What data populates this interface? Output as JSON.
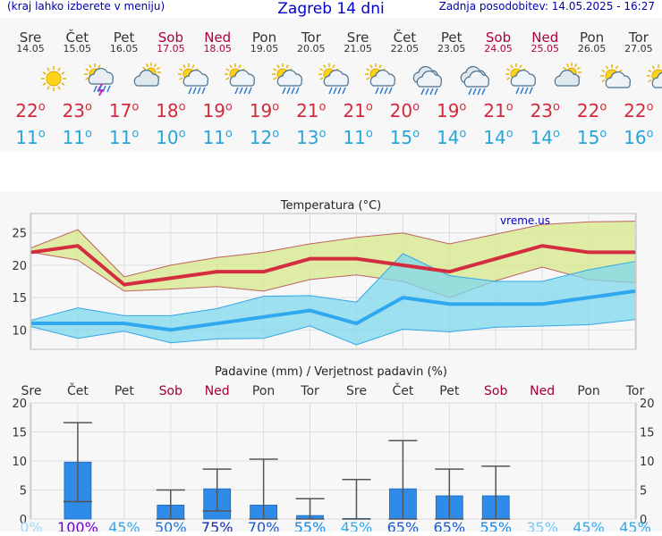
{
  "header": {
    "menu_hint": "(kraj lahko izberete v meniju)",
    "title": "Zagreb 14 dni",
    "last_update": "Zadnja posodobitev: 14.05.2025 - 16:27"
  },
  "days": [
    {
      "name": "Sre",
      "date": "14.05",
      "icon": "sun-icon",
      "max": "22",
      "min": "11",
      "weekend": false
    },
    {
      "name": "Čet",
      "date": "15.05",
      "icon": "thunderstorm-icon",
      "max": "23",
      "min": "11",
      "weekend": false
    },
    {
      "name": "Pet",
      "date": "16.05",
      "icon": "partly-cloudy-icon",
      "max": "17",
      "min": "11",
      "weekend": false
    },
    {
      "name": "Sob",
      "date": "17.05",
      "icon": "sun-rain-icon",
      "max": "18",
      "min": "10",
      "weekend": true
    },
    {
      "name": "Ned",
      "date": "18.05",
      "icon": "sun-rain-icon",
      "max": "19",
      "min": "11",
      "weekend": true
    },
    {
      "name": "Pon",
      "date": "19.05",
      "icon": "sun-rain-icon",
      "max": "19",
      "min": "12",
      "weekend": false
    },
    {
      "name": "Tor",
      "date": "20.05",
      "icon": "sun-rain-icon",
      "max": "21",
      "min": "13",
      "weekend": false
    },
    {
      "name": "Sre",
      "date": "21.05",
      "icon": "sun-rain-icon",
      "max": "21",
      "min": "11",
      "weekend": false
    },
    {
      "name": "Čet",
      "date": "22.05",
      "icon": "rain-cloud-icon",
      "max": "20",
      "min": "15",
      "weekend": false
    },
    {
      "name": "Pet",
      "date": "23.05",
      "icon": "rain-cloud-icon",
      "max": "19",
      "min": "14",
      "weekend": false
    },
    {
      "name": "Sob",
      "date": "24.05",
      "icon": "sun-rain-icon",
      "max": "21",
      "min": "14",
      "weekend": true
    },
    {
      "name": "Ned",
      "date": "25.05",
      "icon": "partly-cloudy-icon",
      "max": "23",
      "min": "14",
      "weekend": true
    },
    {
      "name": "Pon",
      "date": "26.05",
      "icon": "sun-cloud-icon",
      "max": "22",
      "min": "15",
      "weekend": false
    },
    {
      "name": "Tor",
      "date": "27.05",
      "icon": "sun-cloud-icon",
      "max": "22",
      "min": "16",
      "weekend": false
    }
  ],
  "chart_data": [
    {
      "type": "line",
      "title": "Temperatura (°C)",
      "watermark": "vreme.us",
      "ylim": [
        7,
        28
      ],
      "yticks": [
        10,
        15,
        20,
        25
      ],
      "grid": true,
      "max_band_upper": [
        22.7,
        25.5,
        18.2,
        20.0,
        21.2,
        22.0,
        23.3,
        24.3,
        25.0,
        23.3,
        24.8,
        26.3,
        26.7,
        26.8
      ],
      "max_band_lower": [
        22.0,
        20.8,
        16.0,
        16.3,
        16.7,
        16.0,
        17.8,
        18.5,
        17.5,
        15.0,
        17.6,
        19.7,
        17.8,
        17.3
      ],
      "series": [
        {
          "values": [
            22,
            23,
            17,
            18,
            19,
            19,
            21,
            21,
            20,
            19,
            21,
            23,
            22,
            22
          ],
          "color": "#d42d3f"
        },
        {
          "values": [
            11,
            11,
            11,
            10,
            11,
            12,
            13,
            11,
            15,
            14,
            14,
            14,
            15,
            16
          ],
          "color": "#30a8f0"
        }
      ],
      "min_band_upper": [
        11.5,
        13.4,
        12.2,
        12.2,
        13.3,
        15.2,
        15.3,
        14.3,
        21.8,
        18.4,
        17.5,
        17.5,
        19.3,
        20.6
      ],
      "min_band_lower": [
        10.5,
        8.7,
        9.8,
        8.0,
        8.6,
        8.7,
        10.6,
        7.7,
        10.1,
        9.7,
        10.4,
        10.6,
        10.8,
        11.6
      ]
    },
    {
      "type": "bar",
      "title": "Padavine (mm) / Verjetnost padavin (%)",
      "categories": [
        "Sre",
        "Čet",
        "Pet",
        "Sob",
        "Ned",
        "Pon",
        "Tor",
        "Sre",
        "Čet",
        "Pet",
        "Sob",
        "Ned",
        "Pon",
        "Tor"
      ],
      "weekend": [
        false,
        false,
        false,
        true,
        true,
        false,
        false,
        false,
        false,
        false,
        true,
        true,
        false,
        false
      ],
      "ylim": [
        0,
        20
      ],
      "yticks": [
        0,
        5,
        10,
        15,
        20
      ],
      "values": [
        0,
        9.8,
        0,
        2.4,
        5.2,
        2.4,
        0.6,
        0.1,
        5.2,
        4.0,
        4.0,
        0,
        0,
        0
      ],
      "err_low": [
        null,
        3.0,
        null,
        0,
        1.4,
        0,
        0,
        0,
        0,
        0,
        0,
        null,
        null,
        null
      ],
      "err_high": [
        null,
        16.6,
        null,
        5.0,
        8.6,
        10.3,
        3.5,
        6.8,
        13.5,
        8.6,
        9.1,
        null,
        null,
        null
      ],
      "probability": [
        "0%",
        "100%",
        "45%",
        "50%",
        "75%",
        "70%",
        "55%",
        "45%",
        "65%",
        "65%",
        "55%",
        "35%",
        "45%",
        "45%"
      ],
      "probability_colors": [
        "#aad8f4",
        "#6e00c8",
        "#36a8e8",
        "#1a70d8",
        "#1030b0",
        "#1a58c8",
        "#1a88e0",
        "#36a8e8",
        "#1a58c8",
        "#1a58c8",
        "#1a88e0",
        "#7cc8f0",
        "#36a8e8",
        "#36a8e8"
      ],
      "bar_color": "#2e8be8"
    }
  ]
}
